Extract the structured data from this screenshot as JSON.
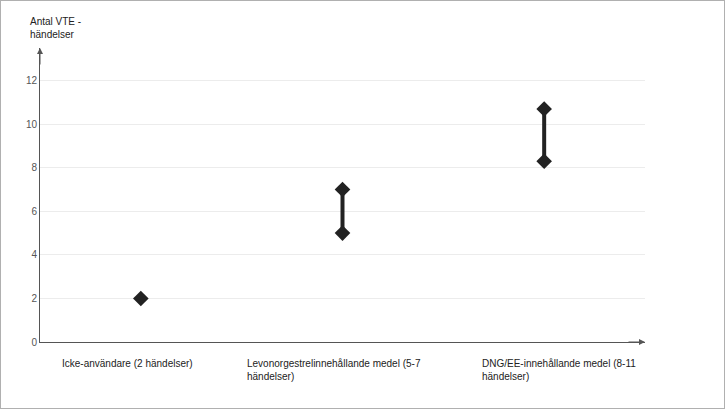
{
  "chart_data": {
    "type": "range",
    "y_title": "Antal VTE - händelser",
    "categories": [
      "Icke-användare (2 händelser)",
      "Levonorgestrelinnehållande medel (5-7 händelser)",
      "DNG/EE-innehållande medel (8-11 händelser)"
    ],
    "low": [
      2,
      5,
      8.3
    ],
    "high": [
      2,
      7,
      10.7
    ],
    "color": "#222222",
    "marker": "diamond",
    "ylim": [
      0,
      13.5
    ],
    "yticks": [
      0,
      2,
      4,
      6,
      8,
      10,
      12
    ],
    "grid": true
  }
}
